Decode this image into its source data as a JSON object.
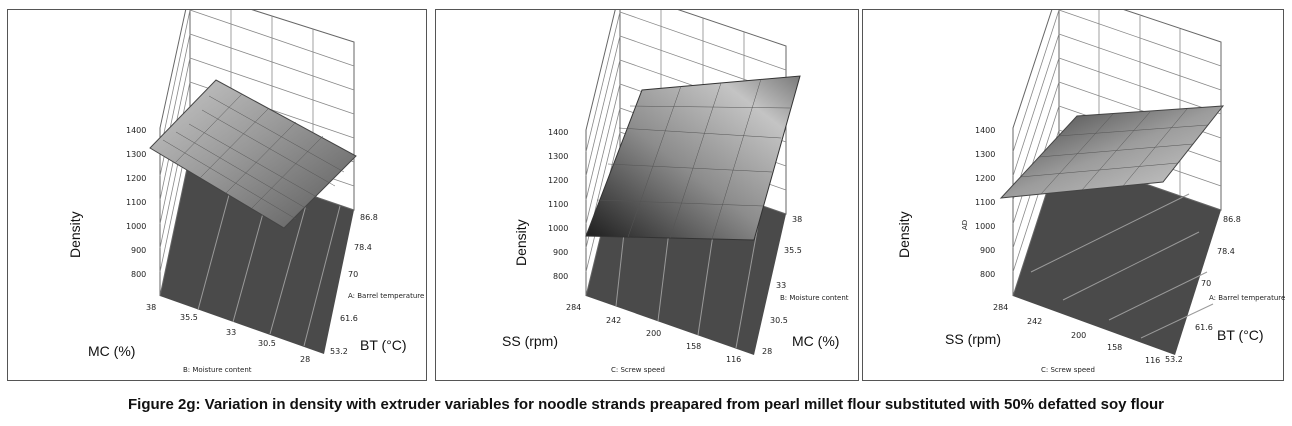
{
  "caption": "Figure 2g: Variation in density with extruder variables for noodle strands preapared from pearl millet flour substituted with 50% defatted soy flour",
  "chart_data": [
    {
      "type": "surface",
      "zlabel": "Density",
      "zticks": [
        "800",
        "900",
        "1000",
        "1100",
        "1200",
        "1300",
        "1400"
      ],
      "left_axis_ticks": [
        "38",
        "35.5",
        "33",
        "30.5",
        "28"
      ],
      "left_axis_factor": "B: Moisture content",
      "left_axis_short": "MC (%)",
      "right_axis_ticks": [
        "53.2",
        "61.6",
        "70",
        "78.4",
        "86.8"
      ],
      "right_axis_factor": "A: Barrel temperature",
      "right_axis_short": "BT (°C)",
      "extra_zlabel": ""
    },
    {
      "type": "surface",
      "zlabel": "Density",
      "zticks": [
        "800",
        "900",
        "1000",
        "1100",
        "1200",
        "1300",
        "1400"
      ],
      "left_axis_ticks": [
        "284",
        "242",
        "200",
        "158",
        "116"
      ],
      "left_axis_factor": "C: Screw speed",
      "left_axis_short": "SS (rpm)",
      "right_axis_ticks": [
        "28",
        "30.5",
        "33",
        "35.5",
        "38"
      ],
      "right_axis_factor": "B: Moisture content",
      "right_axis_short": "MC (%)",
      "extra_zlabel": ""
    },
    {
      "type": "surface",
      "zlabel": "Density",
      "zticks": [
        "800",
        "900",
        "1000",
        "1100",
        "1200",
        "1300",
        "1400"
      ],
      "left_axis_ticks": [
        "284",
        "242",
        "200",
        "158",
        "116"
      ],
      "left_axis_factor": "C: Screw speed",
      "left_axis_short": "SS (rpm)",
      "right_axis_ticks": [
        "53.2",
        "61.6",
        "70",
        "78.4",
        "86.8"
      ],
      "right_axis_factor": "A: Barrel temperature",
      "right_axis_short": "BT (°C)",
      "extra_zlabel": "AD"
    }
  ]
}
